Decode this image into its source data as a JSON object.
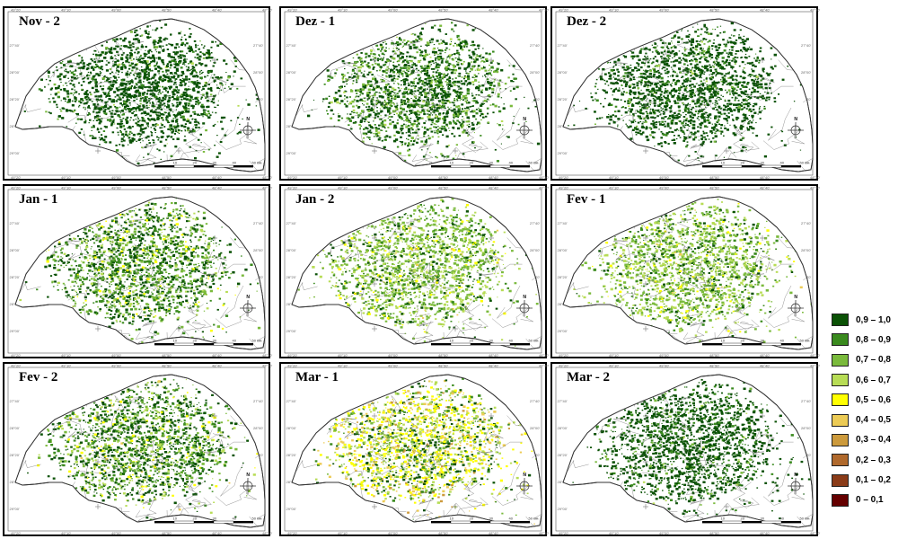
{
  "panels": [
    {
      "title": "Nov - 2",
      "composition": [
        0,
        0,
        0,
        0,
        0,
        0,
        0.01,
        0.03,
        0.11,
        0.85
      ]
    },
    {
      "title": "Dez - 1",
      "composition": [
        0,
        0,
        0,
        0,
        0,
        0,
        0.04,
        0.22,
        0.2,
        0.54
      ]
    },
    {
      "title": "Dez - 2",
      "composition": [
        0,
        0,
        0,
        0,
        0,
        0,
        0.01,
        0.04,
        0.12,
        0.83
      ]
    },
    {
      "title": "Jan - 1",
      "composition": [
        0,
        0,
        0,
        0,
        0,
        0.05,
        0.11,
        0.22,
        0.3,
        0.32
      ]
    },
    {
      "title": "Jan - 2",
      "composition": [
        0,
        0,
        0,
        0,
        0.01,
        0.05,
        0.28,
        0.4,
        0.16,
        0.1
      ]
    },
    {
      "title": "Fev - 1",
      "composition": [
        0,
        0,
        0,
        0,
        0.01,
        0.05,
        0.3,
        0.37,
        0.16,
        0.11
      ]
    },
    {
      "title": "Fev - 2",
      "composition": [
        0,
        0,
        0,
        0,
        0.01,
        0.06,
        0.13,
        0.15,
        0.25,
        0.4
      ]
    },
    {
      "title": "Mar - 1",
      "composition": [
        0,
        0,
        0,
        0.04,
        0.12,
        0.3,
        0.2,
        0.1,
        0.09,
        0.15
      ]
    },
    {
      "title": "Mar - 2",
      "composition": [
        0,
        0,
        0,
        0,
        0,
        0,
        0.01,
        0.04,
        0.15,
        0.8
      ]
    }
  ],
  "legend": {
    "items": [
      {
        "label": "0,9 – 1,0",
        "color": "#0b5206"
      },
      {
        "label": "0,8 – 0,9",
        "color": "#3a8a1e"
      },
      {
        "label": "0,7 – 0,8",
        "color": "#7aba3c"
      },
      {
        "label": "0,6 – 0,7",
        "color": "#b7dc55"
      },
      {
        "label": "0,5 – 0,6",
        "color": "#ffff00"
      },
      {
        "label": "0,4 – 0,5",
        "color": "#eccb55"
      },
      {
        "label": "0,3 – 0,4",
        "color": "#cc9a3c"
      },
      {
        "label": "0,2 – 0,3",
        "color": "#b0692c"
      },
      {
        "label": "0,1 – 0,2",
        "color": "#8a3b18"
      },
      {
        "label": "0 – 0,1",
        "color": "#650000"
      }
    ]
  },
  "graticule": {
    "longitudes": [
      "49°20'",
      "49°10'",
      "49°00'",
      "48°50'",
      "48°40'",
      "48°30'"
    ],
    "latitudes": [
      "27°40'",
      "28°00'",
      "28°20'",
      "28°40'",
      "29°00'"
    ]
  },
  "scalebar": {
    "labels": [
      "0",
      "10",
      "20",
      "30",
      "40",
      "50 km"
    ]
  },
  "compass": {
    "north_label": "N"
  }
}
